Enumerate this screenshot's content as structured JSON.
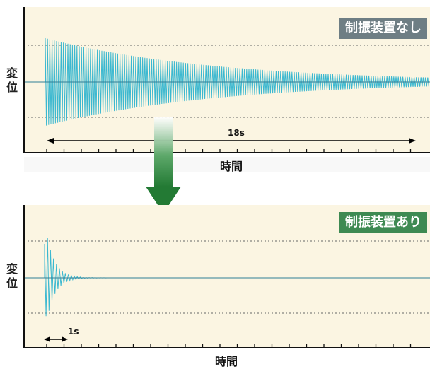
{
  "chart_data": [
    {
      "type": "line",
      "badge": "制振装置なし",
      "ylabel": "変位",
      "xlabel": "時間",
      "duration_label": "18s",
      "duration_s": 18,
      "colors": {
        "bg": "#fbf5e2",
        "trace": "#3bb8d0",
        "badge": "#6e7e84",
        "axis": "#111111",
        "grid": "#666666"
      }
    },
    {
      "type": "line",
      "badge": "制振装置あり",
      "ylabel": "変位",
      "xlabel": "時間",
      "duration_label": "1s",
      "duration_s": 1,
      "colors": {
        "bg": "#fbf5e2",
        "trace": "#3bb8d0",
        "badge": "#3e8a52",
        "axis": "#111111",
        "grid": "#666666"
      }
    }
  ],
  "arrow_color": "#2e7d3a"
}
